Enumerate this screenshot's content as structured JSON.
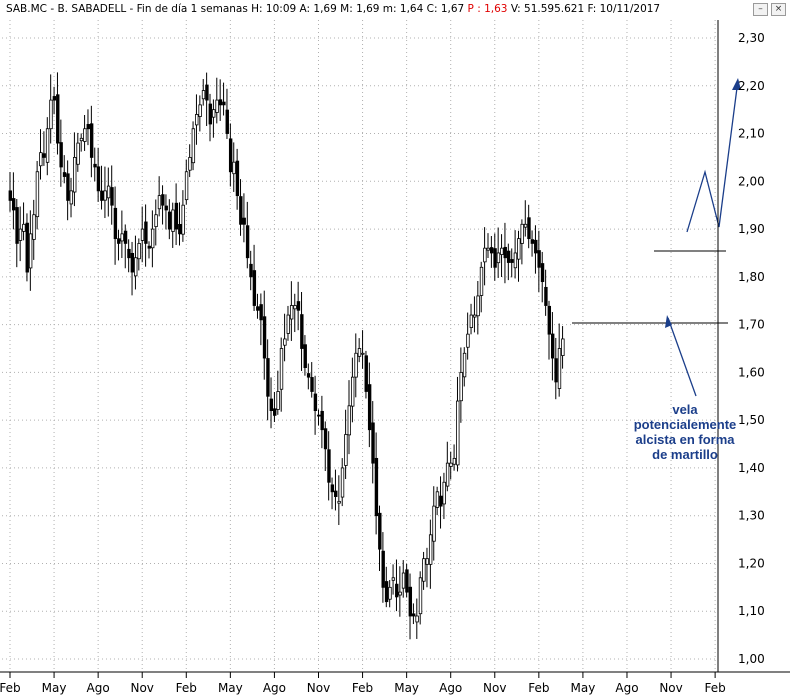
{
  "header": {
    "symbol": "SAB.MC",
    "separator": " - ",
    "name": "B. SABADELL",
    "period": " - Fin de día 1 semanas",
    "high": " H: 10:09",
    "open": " A: 1,69",
    "mid": " M: 1,69",
    "low": " m: 1,64",
    "close": " C: 1,67",
    "last_label": " P : 1,63",
    "volume": " V: 51.595.621",
    "date": " F: 10/11/2017",
    "btn_min": "–",
    "btn_close": "×"
  },
  "annotation": {
    "line1": "vela",
    "line2": "potencialemente",
    "line3": "alcista en forma",
    "line4": "de martillo"
  },
  "colors": {
    "candle": "#000000",
    "grid": "#b0b0b0",
    "annotation": "#1b3e8a",
    "last_price": "#e00000"
  },
  "chart_data": {
    "type": "candlestick",
    "title": "",
    "xlabel": "",
    "ylabel": "",
    "ylim": [
      0.98,
      2.33
    ],
    "y_ticks": [
      "1,00",
      "1,10",
      "1,20",
      "1,30",
      "1,40",
      "1,50",
      "1,60",
      "1,70",
      "1,80",
      "1,90",
      "2,00",
      "2,10",
      "2,20",
      "2,30"
    ],
    "y_tick_values": [
      1.0,
      1.1,
      1.2,
      1.3,
      1.4,
      1.5,
      1.6,
      1.7,
      1.8,
      1.9,
      2.0,
      2.1,
      2.2,
      2.3
    ],
    "x_ticks": [
      "Feb",
      "May",
      "Ago",
      "Nov",
      "Feb",
      "May",
      "Ago",
      "Nov",
      "Feb",
      "May",
      "Ago",
      "Nov",
      "Feb",
      "May",
      "Ago",
      "Nov",
      "Feb"
    ],
    "x_tick_index": [
      0,
      13,
      26,
      39,
      52,
      65,
      78,
      91,
      104,
      117,
      130,
      143,
      156,
      169,
      182,
      195,
      208
    ],
    "grid": true,
    "period": "weekly",
    "close": [
      1.96,
      1.94,
      1.87,
      1.9,
      1.91,
      1.81,
      1.89,
      1.93,
      2.02,
      2.06,
      2.05,
      2.11,
      2.17,
      2.17,
      2.08,
      2.03,
      2.01,
      1.96,
      1.98,
      2.05,
      2.08,
      2.09,
      2.11,
      2.11,
      2.05,
      2.03,
      1.98,
      1.96,
      1.98,
      1.99,
      1.95,
      1.88,
      1.87,
      1.89,
      1.87,
      1.84,
      1.81,
      1.84,
      1.87,
      1.9,
      1.87,
      1.86,
      1.9,
      1.93,
      1.97,
      1.95,
      1.94,
      1.9,
      1.94,
      1.9,
      1.89,
      1.95,
      2.02,
      2.05,
      2.11,
      2.14,
      2.16,
      2.19,
      2.17,
      2.12,
      2.15,
      2.17,
      2.16,
      2.16,
      2.1,
      2.02,
      2.04,
      1.97,
      1.91,
      1.91,
      1.84,
      1.8,
      1.74,
      1.73,
      1.71,
      1.63,
      1.55,
      1.52,
      1.51,
      1.56,
      1.65,
      1.67,
      1.72,
      1.74,
      1.74,
      1.73,
      1.65,
      1.61,
      1.59,
      1.56,
      1.52,
      1.51,
      1.48,
      1.44,
      1.37,
      1.35,
      1.34,
      1.33,
      1.4,
      1.47,
      1.53,
      1.59,
      1.64,
      1.65,
      1.64,
      1.56,
      1.48,
      1.41,
      1.3,
      1.23,
      1.15,
      1.12,
      1.15,
      1.17,
      1.13,
      1.14,
      1.18,
      1.14,
      1.09,
      1.09,
      1.09,
      1.17,
      1.21,
      1.21,
      1.26,
      1.32,
      1.35,
      1.32,
      1.37,
      1.41,
      1.41,
      1.42,
      1.54,
      1.6,
      1.64,
      1.68,
      1.72,
      1.72,
      1.76,
      1.82,
      1.86,
      1.86,
      1.85,
      1.82,
      1.85,
      1.86,
      1.84,
      1.83,
      1.83,
      1.85,
      1.88,
      1.91,
      1.91,
      1.88,
      1.87,
      1.85,
      1.82,
      1.79,
      1.74,
      1.68,
      1.63,
      1.58,
      1.65,
      1.67
    ]
  }
}
